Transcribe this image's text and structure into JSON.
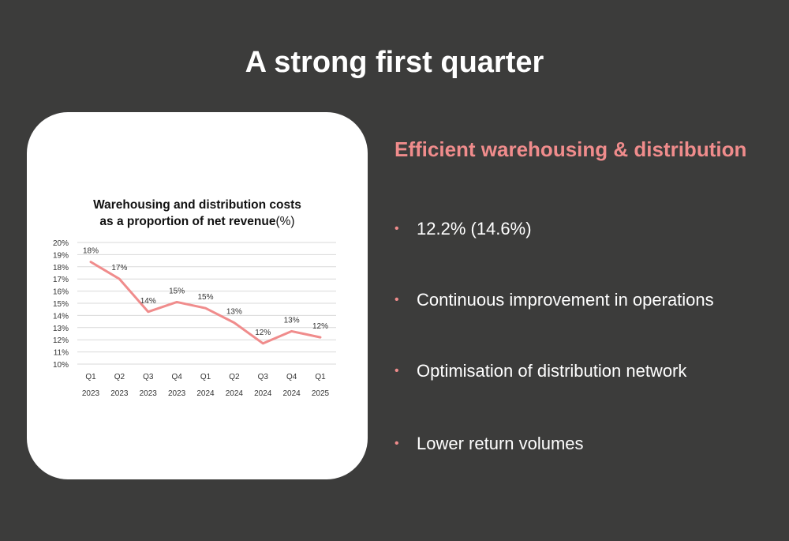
{
  "slide": {
    "title": "A strong first quarter"
  },
  "right": {
    "heading": "Efficient warehousing & distribution",
    "bullets": [
      "12.2% (14.6%)",
      "Continuous improvement in operations",
      "Optimisation of distribution network",
      "Lower return volumes"
    ]
  },
  "chart_data": {
    "type": "line",
    "title_line1": "Warehousing and distribution costs",
    "title_line2_bold": "as a proportion of net revenue",
    "title_line2_unit": "(%)",
    "categories": [
      [
        "Q1",
        "2023"
      ],
      [
        "Q2",
        "2023"
      ],
      [
        "Q3",
        "2023"
      ],
      [
        "Q4",
        "2023"
      ],
      [
        "Q1",
        "2024"
      ],
      [
        "Q2",
        "2024"
      ],
      [
        "Q3",
        "2024"
      ],
      [
        "Q4",
        "2024"
      ],
      [
        "Q1",
        "2025"
      ]
    ],
    "values": [
      18.4,
      17.0,
      14.3,
      15.1,
      14.6,
      13.4,
      11.7,
      12.7,
      12.2
    ],
    "data_labels": [
      "18%",
      "17%",
      "14%",
      "15%",
      "15%",
      "13%",
      "12%",
      "13%",
      "12%"
    ],
    "yticks": [
      "10%",
      "11%",
      "12%",
      "13%",
      "14%",
      "15%",
      "16%",
      "17%",
      "18%",
      "19%",
      "20%"
    ],
    "ylim": [
      10,
      20
    ],
    "grid": true,
    "line_color": "#f08c8c"
  }
}
